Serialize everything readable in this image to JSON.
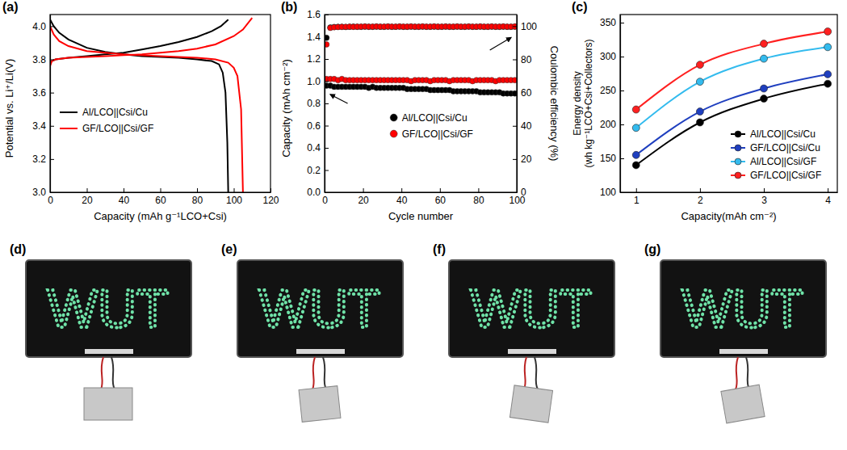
{
  "chart_data": [
    {
      "type": "line",
      "panel_label": "(a)",
      "x_label": "Capacity (mAh g⁻¹LCO+Csi)",
      "y_label": "Potential vs. Li⁺/Li(V)",
      "xlim": [
        0,
        120
      ],
      "xticks": [
        0,
        20,
        40,
        60,
        80,
        100,
        120
      ],
      "ylim": [
        3,
        4.07
      ],
      "yticks": [
        {
          "value": 3,
          "label": "3.0"
        },
        3.2,
        3.4,
        3.6,
        3.8,
        {
          "value": 4,
          "label": "4.0"
        }
      ],
      "legend": "left",
      "series": [
        {
          "name": "Al/LCO||Csi/Cu",
          "color": "#000000",
          "charge": {
            "x": [
              0,
              1,
              3,
              10,
              20,
              30,
              40,
              50,
              60,
              70,
              80,
              88,
              93,
              97
            ],
            "values": [
              3.78,
              3.79,
              3.8,
              3.81,
              3.82,
              3.83,
              3.84,
              3.86,
              3.88,
              3.905,
              3.935,
              3.97,
              4.0,
              4.04
            ]
          },
          "discharge": {
            "x": [
              0,
              2,
              5,
              10,
              20,
              30,
              40,
              50,
              60,
              70,
              80,
              88,
              92,
              94,
              95.5,
              96.5,
              97
            ],
            "values": [
              4.04,
              4.0,
              3.96,
              3.92,
              3.87,
              3.845,
              3.83,
              3.82,
              3.815,
              3.81,
              3.8,
              3.79,
              3.77,
              3.72,
              3.6,
              3.3,
              3.0
            ]
          }
        },
        {
          "name": "GF/LCO||Csi/GF",
          "color": "#ff0000",
          "charge": {
            "x": [
              0,
              1,
              3,
              10,
              20,
              30,
              40,
              50,
              60,
              70,
              80,
              90,
              100,
              105,
              110
            ],
            "values": [
              3.76,
              3.79,
              3.8,
              3.81,
              3.815,
              3.82,
              3.825,
              3.83,
              3.84,
              3.85,
              3.865,
              3.89,
              3.94,
              3.98,
              4.05
            ]
          },
          "discharge": {
            "x": [
              0,
              2,
              5,
              10,
              20,
              30,
              40,
              50,
              60,
              70,
              80,
              90,
              97,
              100,
              102,
              104,
              105
            ],
            "values": [
              4.0,
              3.95,
              3.91,
              3.88,
              3.85,
              3.84,
              3.83,
              3.825,
              3.82,
              3.815,
              3.81,
              3.8,
              3.78,
              3.75,
              3.7,
              3.5,
              3.0
            ]
          }
        }
      ]
    },
    {
      "type": "scatter",
      "panel_label": "(b)",
      "marker": "circle",
      "x_label": "Cycle number",
      "y_label": "Capacity (mAh cm⁻²)",
      "y2_label": "Coulombic efficiency (%)",
      "xlim": [
        0,
        100
      ],
      "xticks": [
        0,
        20,
        40,
        60,
        80,
        100
      ],
      "ylim": [
        0,
        1.6
      ],
      "yticks": [
        {
          "value": 0,
          "label": "0.0"
        },
        0.2,
        0.4,
        0.6,
        0.8,
        {
          "value": 1,
          "label": "1.0"
        },
        1.2,
        1.4,
        1.6
      ],
      "y2lim": [
        0,
        107
      ],
      "y2ticks": [
        0,
        20,
        40,
        60,
        80,
        100
      ],
      "legend": "center",
      "x": [
        1,
        3,
        5,
        7,
        9,
        11,
        13,
        15,
        17,
        19,
        21,
        23,
        25,
        27,
        29,
        31,
        33,
        35,
        37,
        39,
        41,
        43,
        45,
        47,
        49,
        51,
        53,
        55,
        57,
        59,
        61,
        63,
        65,
        67,
        69,
        71,
        73,
        75,
        77,
        79,
        81,
        83,
        85,
        87,
        89,
        91,
        93,
        95,
        97,
        99
      ],
      "series": [
        {
          "name": "Al/LCO||Csi/Cu",
          "color": "#000000",
          "values": [
            0.96,
            0.96,
            0.95,
            0.95,
            0.95,
            0.95,
            0.95,
            0.95,
            0.95,
            0.95,
            0.95,
            0.94,
            0.95,
            0.94,
            0.94,
            0.94,
            0.94,
            0.94,
            0.94,
            0.94,
            0.94,
            0.93,
            0.93,
            0.93,
            0.93,
            0.93,
            0.93,
            0.92,
            0.92,
            0.92,
            0.92,
            0.92,
            0.92,
            0.91,
            0.91,
            0.91,
            0.91,
            0.91,
            0.91,
            0.91,
            0.9,
            0.9,
            0.9,
            0.9,
            0.9,
            0.9,
            0.89,
            0.89,
            0.89,
            0.89
          ],
          "efficiency": [
            93,
            99.2,
            99.5,
            99.6,
            99.6,
            99.5,
            99.6,
            99.7,
            99.6,
            99.6,
            99.7,
            99.6,
            99.6,
            99.7,
            99.6,
            99.6,
            99.7,
            99.6,
            99.6,
            99.7,
            99.6,
            99.6,
            99.7,
            99.6,
            99.6,
            99.7,
            99.6,
            99.6,
            99.7,
            99.6,
            99.6,
            99.7,
            99.6,
            99.6,
            99.7,
            99.6,
            99.6,
            99.7,
            99.6,
            99.6,
            99.7,
            99.6,
            99.6,
            99.7,
            99.6,
            99.6,
            99.7,
            99.6,
            99.6,
            99.7
          ]
        },
        {
          "name": "GF/LCO||Csi/GF",
          "color": "#ff0000",
          "values": [
            1.02,
            1.02,
            1.02,
            1.01,
            1.02,
            1.01,
            1.01,
            1.01,
            1.01,
            1.01,
            1.01,
            1.01,
            1.01,
            1.01,
            1.01,
            1.01,
            1.01,
            1.01,
            1.01,
            1.01,
            1.01,
            1.01,
            1.0,
            1.01,
            1.01,
            1.01,
            1.01,
            1.0,
            1.01,
            1.01,
            1.01,
            1.01,
            1.0,
            1.01,
            1.01,
            1.01,
            1.01,
            1.01,
            1.0,
            1.01,
            1.01,
            1.01,
            1.01,
            1.01,
            1.0,
            1.01,
            1.01,
            1.01,
            1.01,
            1.01
          ],
          "efficiency": [
            89,
            99.0,
            99.4,
            99.5,
            99.6,
            99.6,
            99.7,
            99.6,
            99.7,
            99.7,
            99.8,
            99.7,
            99.7,
            99.8,
            99.7,
            99.7,
            99.8,
            99.7,
            99.7,
            99.8,
            99.7,
            99.7,
            99.8,
            99.7,
            99.7,
            99.8,
            99.7,
            99.7,
            99.8,
            99.7,
            99.7,
            99.8,
            99.7,
            99.7,
            99.8,
            99.7,
            99.7,
            99.8,
            99.7,
            99.7,
            99.8,
            99.7,
            99.7,
            99.8,
            99.7,
            99.7,
            99.8,
            99.7,
            99.7,
            99.8
          ]
        }
      ]
    },
    {
      "type": "line",
      "panel_label": "(c)",
      "marker": "circle",
      "x_label": "Capacity(mAh cm⁻²)",
      "y_label": "Energy density(wh kg⁻¹LCO+Csi+Collectors)",
      "xlim": [
        0.75,
        4.15
      ],
      "xticks": [
        1,
        2,
        3,
        4
      ],
      "ylim": [
        100,
        362
      ],
      "yticks": [
        100,
        150,
        200,
        250,
        300,
        350
      ],
      "legend": "lower right",
      "x": [
        1,
        2,
        3,
        4
      ],
      "series": [
        {
          "name": "Al/LCO||Csi/Cu",
          "color": "#000000",
          "values": [
            140,
            203,
            238,
            260
          ]
        },
        {
          "name": "GF/LCO||Csi/Cu",
          "color": "#1f3fbf",
          "values": [
            155,
            219,
            253,
            274
          ]
        },
        {
          "name": "Al/LCO||Csi/GF",
          "color": "#33bbee",
          "values": [
            195,
            263,
            297,
            314
          ]
        },
        {
          "name": "GF/LCO||Csi/GF",
          "color": "#ff2020",
          "values": [
            222,
            288,
            319,
            337
          ]
        }
      ]
    }
  ],
  "photos": [
    {
      "panel_label": "(d)",
      "sign": "WUT"
    },
    {
      "panel_label": "(e)",
      "sign": "WUT"
    },
    {
      "panel_label": "(f)",
      "sign": "WUT"
    },
    {
      "panel_label": "(g)",
      "sign": "WUT"
    }
  ]
}
